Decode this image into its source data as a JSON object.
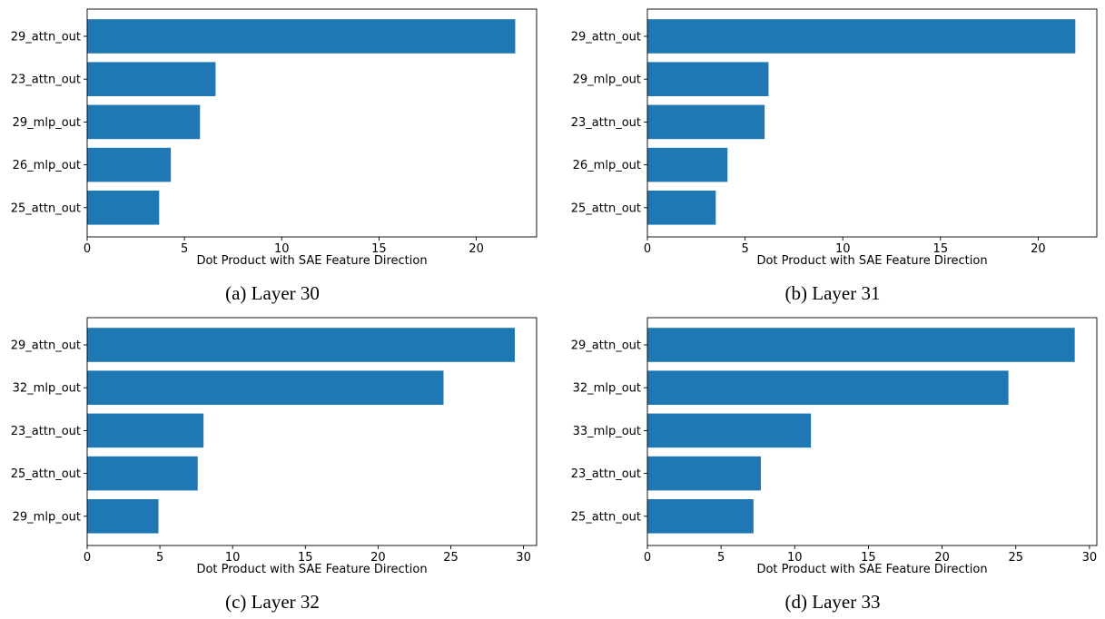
{
  "chart_data": [
    {
      "type": "bar",
      "orientation": "horizontal",
      "caption": "(a) Layer 30",
      "xlabel": "Dot Product with SAE Feature Direction",
      "ylabel": "",
      "categories": [
        "29_attn_out",
        "23_attn_out",
        "29_mlp_out",
        "26_mlp_out",
        "25_attn_out"
      ],
      "values": [
        22.0,
        6.6,
        5.8,
        4.3,
        3.7
      ],
      "xlim": [
        0,
        23.1
      ],
      "xticks": [
        0,
        5,
        10,
        15,
        20
      ],
      "color": "#1f77b4"
    },
    {
      "type": "bar",
      "orientation": "horizontal",
      "caption": "(b) Layer 31",
      "xlabel": "Dot Product with SAE Feature Direction",
      "ylabel": "",
      "categories": [
        "29_attn_out",
        "29_mlp_out",
        "23_attn_out",
        "26_mlp_out",
        "25_attn_out"
      ],
      "values": [
        21.9,
        6.2,
        6.0,
        4.1,
        3.5
      ],
      "xlim": [
        0,
        23.0
      ],
      "xticks": [
        0,
        5,
        10,
        15,
        20
      ],
      "color": "#1f77b4"
    },
    {
      "type": "bar",
      "orientation": "horizontal",
      "caption": "(c) Layer 32",
      "xlabel": "Dot Product with SAE Feature Direction",
      "ylabel": "",
      "categories": [
        "29_attn_out",
        "32_mlp_out",
        "23_attn_out",
        "25_attn_out",
        "29_mlp_out"
      ],
      "values": [
        29.4,
        24.5,
        8.0,
        7.6,
        4.9
      ],
      "xlim": [
        0,
        30.9
      ],
      "xticks": [
        0,
        5,
        10,
        15,
        20,
        25,
        30
      ],
      "color": "#1f77b4"
    },
    {
      "type": "bar",
      "orientation": "horizontal",
      "caption": "(d) Layer 33",
      "xlabel": "Dot Product with SAE Feature Direction",
      "ylabel": "",
      "categories": [
        "29_attn_out",
        "32_mlp_out",
        "33_mlp_out",
        "23_attn_out",
        "25_attn_out"
      ],
      "values": [
        29.0,
        24.5,
        11.1,
        7.7,
        7.2
      ],
      "xlim": [
        0,
        30.5
      ],
      "xticks": [
        0,
        5,
        10,
        15,
        20,
        25,
        30
      ],
      "color": "#1f77b4"
    }
  ]
}
